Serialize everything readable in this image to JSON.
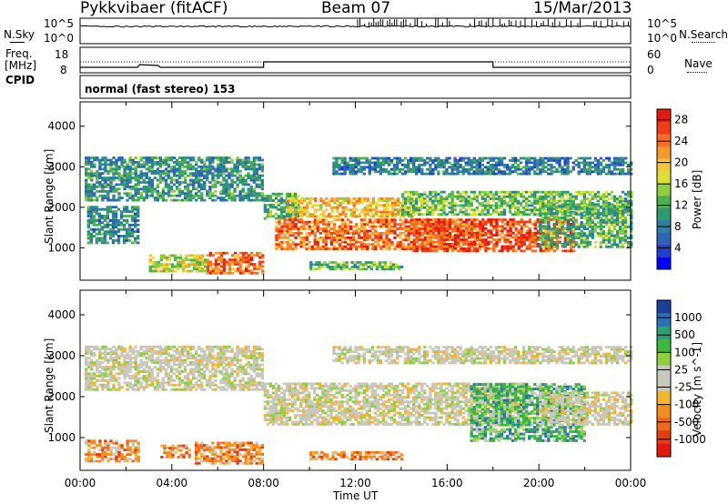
{
  "header": {
    "station": "Pykkvibaer (fitACF)",
    "beam": "Beam 07",
    "date": "15/Mar/2013"
  },
  "noise_panel": {
    "left_label": "N.Sky",
    "left_ticks": [
      "10^5",
      "10^0"
    ],
    "right_label": "N.Search",
    "right_ticks": [
      "10^5",
      "10^0"
    ]
  },
  "freq_panel": {
    "left_label_1": "Freq.",
    "left_label_2": "[MHz]",
    "left_ticks": [
      "18",
      "8"
    ],
    "right_label": "Nave",
    "right_ticks": [
      "60",
      "0"
    ]
  },
  "cpid_panel": {
    "label": "CPID",
    "mode": "normal (fast stereo) 153"
  },
  "chart_data": [
    {
      "type": "heatmap",
      "name": "power",
      "ylabel": "Slant Range [km]",
      "ylim": [
        200,
        4600
      ],
      "y_ticks": [
        "1000",
        "2000",
        "3000",
        "4000"
      ],
      "xlim": [
        "00:00",
        "24:00"
      ],
      "colorbar": {
        "label": "Power [dB]",
        "ticks": [
          "4",
          "8",
          "12",
          "16",
          "20",
          "24",
          "28"
        ],
        "range": [
          0,
          30
        ],
        "colors": [
          "#0000ff",
          "#1f3fd0",
          "#2f63b8",
          "#2f7f9f",
          "#2e9a72",
          "#4fb04f",
          "#8fcc3f",
          "#dde03a",
          "#f9c53c",
          "#f79a2e",
          "#f46f22",
          "#ee3d16",
          "#e41a10"
        ]
      },
      "echo_regions": [
        {
          "t0": 0.2,
          "t1": 8.0,
          "r0": 2150,
          "r1": 3200,
          "power": 10
        },
        {
          "t0": 0.3,
          "t1": 2.5,
          "r0": 1100,
          "r1": 2000,
          "power": 9
        },
        {
          "t0": 5.5,
          "t1": 8.0,
          "r0": 350,
          "r1": 900,
          "power": 25
        },
        {
          "t0": 3.0,
          "t1": 5.5,
          "r0": 400,
          "r1": 800,
          "power": 17
        },
        {
          "t0": 8.0,
          "t1": 9.5,
          "r0": 1700,
          "r1": 2350,
          "power": 12
        },
        {
          "t0": 9.0,
          "t1": 14.5,
          "r0": 1750,
          "r1": 2200,
          "power": 20
        },
        {
          "t0": 8.5,
          "t1": 17.5,
          "r0": 950,
          "r1": 1700,
          "power": 24
        },
        {
          "t0": 14.5,
          "t1": 21.5,
          "r0": 900,
          "r1": 1700,
          "power": 26
        },
        {
          "t0": 14.0,
          "t1": 24.0,
          "r0": 1800,
          "r1": 2400,
          "power": 13
        },
        {
          "t0": 11.0,
          "t1": 24.0,
          "r0": 2800,
          "r1": 3200,
          "power": 8
        },
        {
          "t0": 20.0,
          "t1": 24.0,
          "r0": 1000,
          "r1": 2100,
          "power": 12
        },
        {
          "t0": 10.0,
          "t1": 14.0,
          "r0": 450,
          "r1": 650,
          "power": 13
        }
      ]
    },
    {
      "type": "heatmap",
      "name": "velocity",
      "ylabel": "Slant Range [km]",
      "ylim": [
        200,
        4600
      ],
      "y_ticks": [
        "1000",
        "2000",
        "3000",
        "4000"
      ],
      "xlim": [
        "00:00",
        "24:00"
      ],
      "xlabel": "Time UT",
      "x_ticks": [
        "00:00",
        "04:00",
        "08:00",
        "12:00",
        "16:00",
        "20:00",
        "00:00"
      ],
      "colorbar": {
        "label": "Velocity [m s^-1]",
        "ticks": [
          "1000",
          "500",
          "100",
          "25",
          "-25",
          "-100",
          "-500",
          "-1000"
        ],
        "colors": [
          "#1a3f9f",
          "#2f6fb8",
          "#2f9f72",
          "#3fb83f",
          "#90d040",
          "#c8c8bc",
          "#c8c8bc",
          "#f7b32e",
          "#f48d22",
          "#f06a1d",
          "#e43e14",
          "#e0180e"
        ]
      },
      "echo_regions": [
        {
          "t0": 0.2,
          "t1": 8.0,
          "r0": 2150,
          "r1": 3200,
          "class": "grey"
        },
        {
          "t0": 0.2,
          "t1": 2.5,
          "r0": 400,
          "r1": 900,
          "class": "orange"
        },
        {
          "t0": 5.0,
          "t1": 8.0,
          "r0": 350,
          "r1": 900,
          "class": "orange"
        },
        {
          "t0": 3.5,
          "t1": 4.8,
          "r0": 500,
          "r1": 800,
          "class": "orange"
        },
        {
          "t0": 8.0,
          "t1": 19.5,
          "r0": 1300,
          "r1": 2300,
          "class": "grey"
        },
        {
          "t0": 10.0,
          "t1": 14.0,
          "r0": 450,
          "r1": 650,
          "class": "orange"
        },
        {
          "t0": 17.0,
          "t1": 22.0,
          "r0": 900,
          "r1": 2300,
          "class": "green"
        },
        {
          "t0": 20.0,
          "t1": 24.0,
          "r0": 1300,
          "r1": 2100,
          "class": "grey"
        },
        {
          "t0": 11.0,
          "t1": 24.0,
          "r0": 2800,
          "r1": 3200,
          "class": "grey"
        }
      ]
    }
  ]
}
